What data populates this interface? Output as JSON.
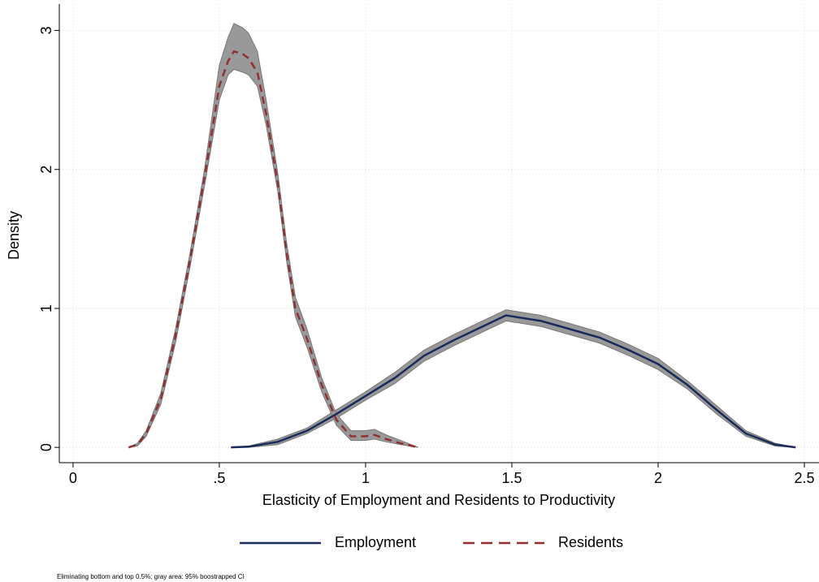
{
  "chart_data": {
    "type": "density",
    "x_label": "Elasticity of Employment and Residents to Productivity",
    "y_label": "Density",
    "note": "Eliminating bottom and top 0.5%; gray area: 95% boostrapped CI",
    "xlim": [
      -0.047,
      2.55
    ],
    "ylim": [
      -0.11,
      3.19
    ],
    "xticks": [
      0,
      {
        "value": 0.5,
        "label": ".5"
      },
      1,
      1.5,
      2,
      2.5
    ],
    "yticks": [
      0,
      1,
      2,
      3
    ],
    "grid": true,
    "band_color": "#999999",
    "legend": "bottom",
    "series": [
      {
        "name": "Employment",
        "color": "#1a2a5a",
        "line_style": "solid",
        "x": [
          0.54,
          0.6,
          0.7,
          0.8,
          0.9,
          1.0,
          1.1,
          1.2,
          1.3,
          1.4,
          1.48,
          1.6,
          1.7,
          1.8,
          1.9,
          2.0,
          2.1,
          2.2,
          2.3,
          2.4,
          2.47
        ],
        "values": [
          0,
          0.005,
          0.04,
          0.12,
          0.24,
          0.37,
          0.5,
          0.66,
          0.77,
          0.87,
          0.95,
          0.91,
          0.85,
          0.79,
          0.7,
          0.6,
          0.45,
          0.27,
          0.1,
          0.02,
          0
        ],
        "ci_lower": [
          0,
          0,
          0.02,
          0.1,
          0.21,
          0.34,
          0.46,
          0.62,
          0.73,
          0.83,
          0.91,
          0.87,
          0.81,
          0.75,
          0.66,
          0.56,
          0.42,
          0.24,
          0.08,
          0.01,
          0
        ],
        "ci_upper": [
          0,
          0.01,
          0.06,
          0.14,
          0.27,
          0.4,
          0.54,
          0.7,
          0.81,
          0.91,
          0.99,
          0.95,
          0.89,
          0.83,
          0.74,
          0.64,
          0.48,
          0.3,
          0.12,
          0.03,
          0
        ]
      },
      {
        "name": "Residents",
        "color": "#903030",
        "line_style": "dashed",
        "x": [
          0.19,
          0.22,
          0.25,
          0.3,
          0.35,
          0.4,
          0.45,
          0.5,
          0.53,
          0.55,
          0.58,
          0.6,
          0.63,
          0.66,
          0.7,
          0.73,
          0.76,
          0.8,
          0.85,
          0.9,
          0.95,
          1.0,
          1.03,
          1.07,
          1.12,
          1.18
        ],
        "values": [
          0,
          0.02,
          0.1,
          0.35,
          0.8,
          1.35,
          1.95,
          2.6,
          2.78,
          2.85,
          2.83,
          2.8,
          2.7,
          2.4,
          1.9,
          1.4,
          1.0,
          0.78,
          0.45,
          0.2,
          0.08,
          0.08,
          0.09,
          0.06,
          0.03,
          0
        ],
        "ci_lower": [
          0,
          0.01,
          0.08,
          0.31,
          0.75,
          1.3,
          1.89,
          2.5,
          2.68,
          2.72,
          2.7,
          2.68,
          2.6,
          2.32,
          1.84,
          1.34,
          0.94,
          0.72,
          0.4,
          0.16,
          0.05,
          0.05,
          0.06,
          0.04,
          0.02,
          0
        ],
        "ci_upper": [
          0,
          0.03,
          0.12,
          0.39,
          0.85,
          1.4,
          2.01,
          2.75,
          2.95,
          3.05,
          3.02,
          2.98,
          2.85,
          2.5,
          1.97,
          1.47,
          1.08,
          0.85,
          0.5,
          0.24,
          0.12,
          0.12,
          0.13,
          0.09,
          0.05,
          0
        ]
      }
    ]
  }
}
